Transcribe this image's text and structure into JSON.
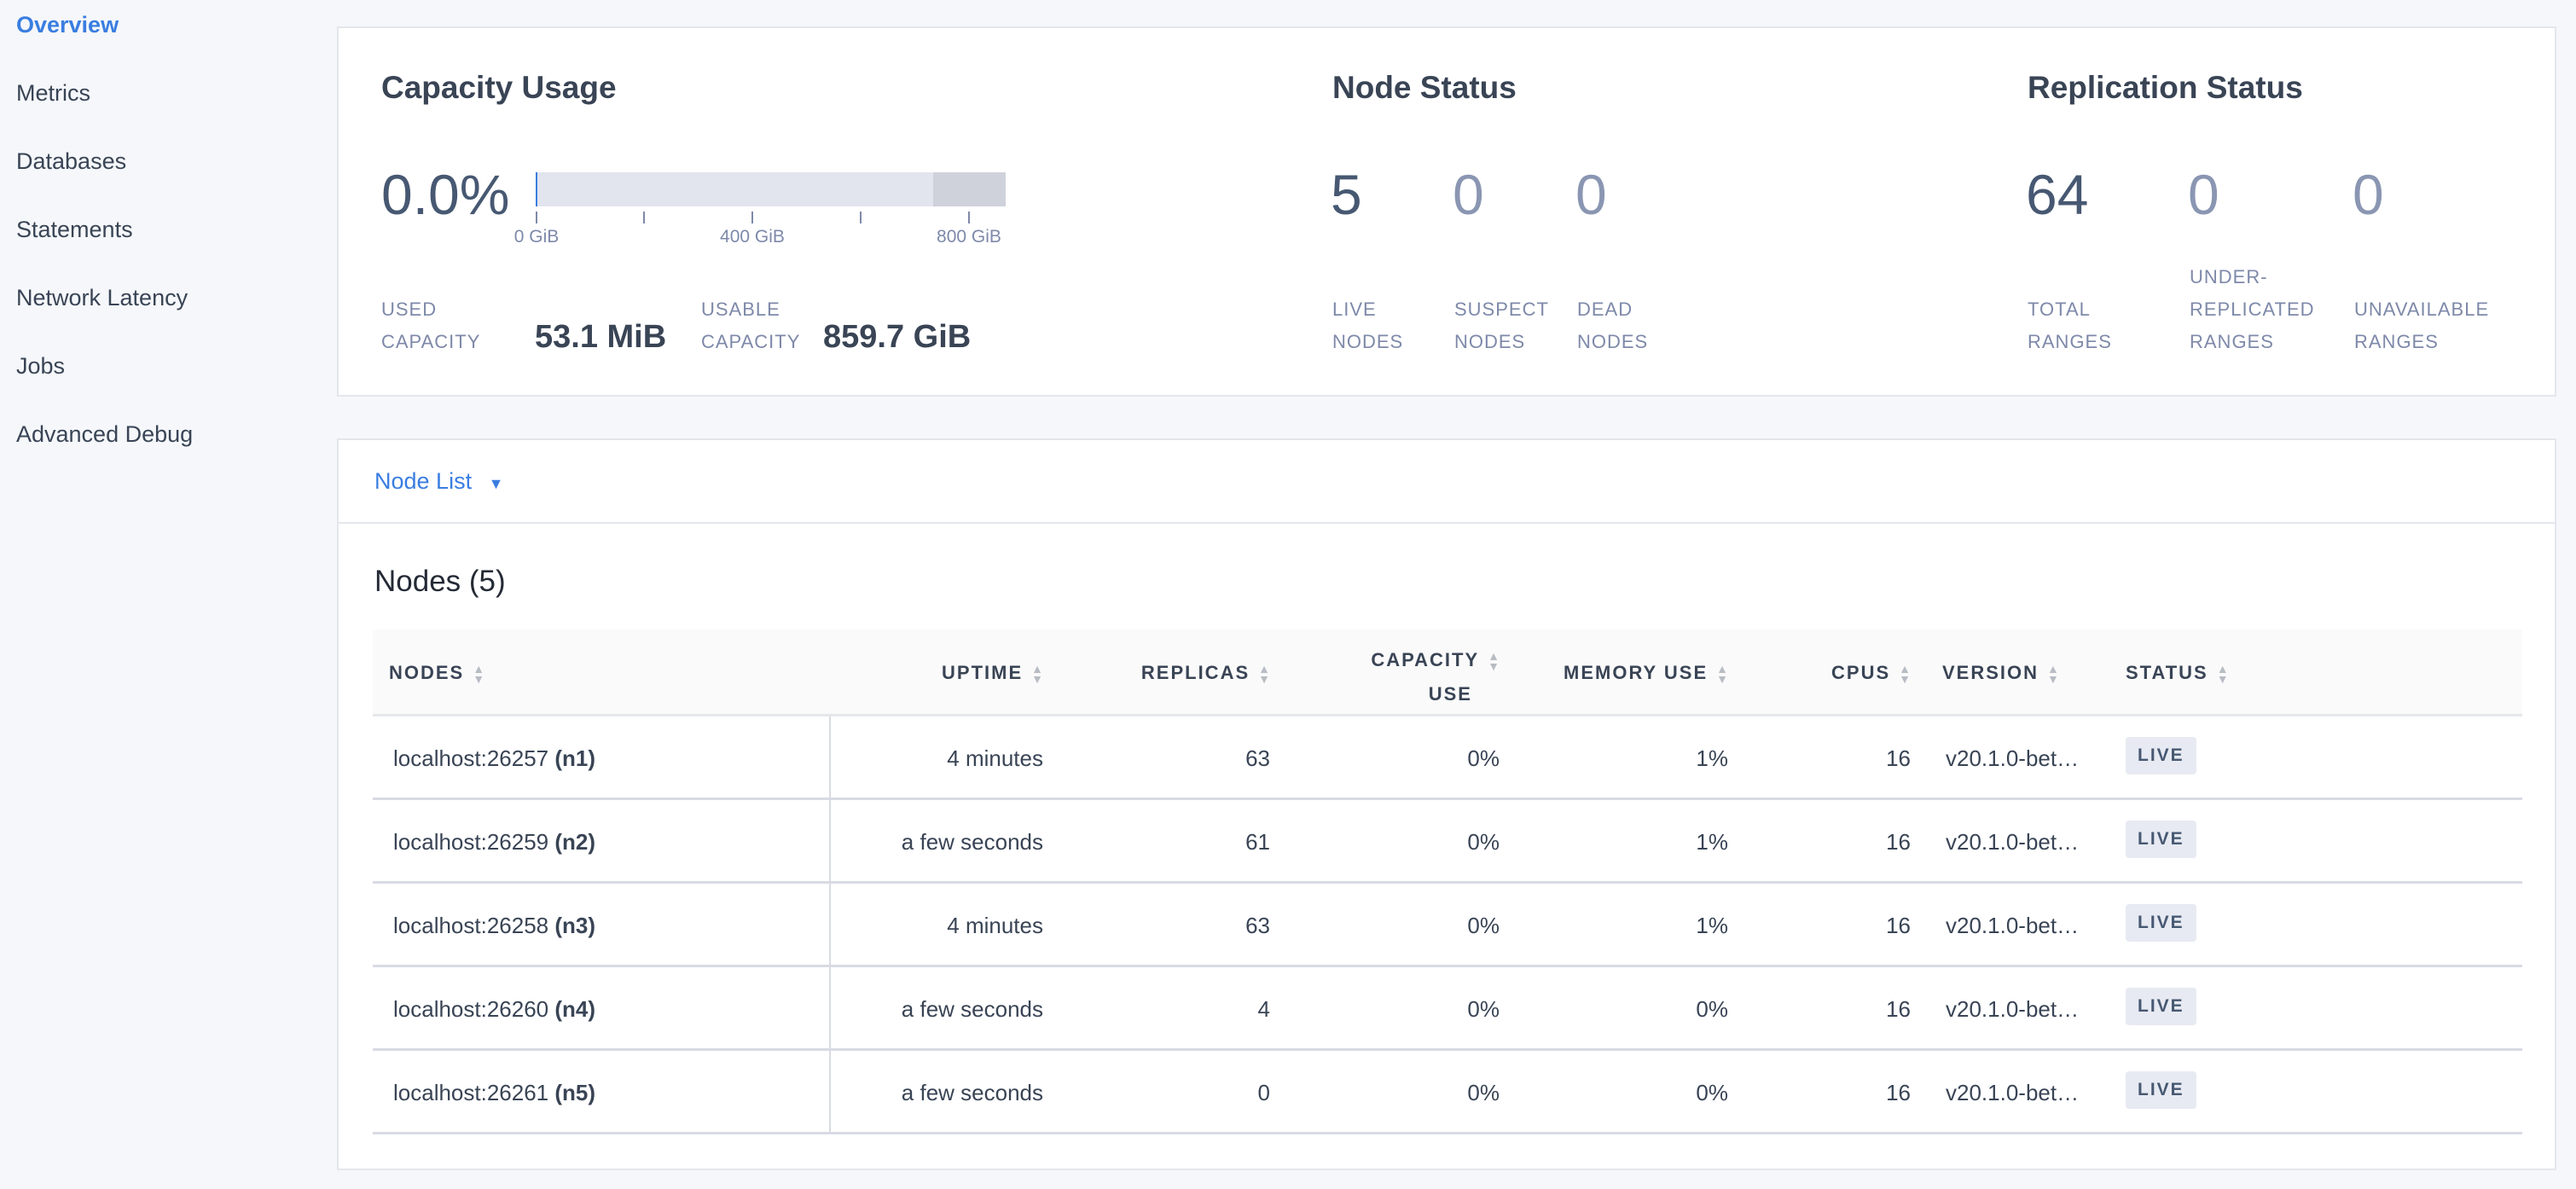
{
  "sidebar": {
    "items": [
      {
        "label": "Overview",
        "active": true
      },
      {
        "label": "Metrics"
      },
      {
        "label": "Databases"
      },
      {
        "label": "Statements"
      },
      {
        "label": "Network Latency"
      },
      {
        "label": "Jobs"
      },
      {
        "label": "Advanced Debug"
      }
    ]
  },
  "capacity": {
    "title": "Capacity Usage",
    "percent": "0.0%",
    "used_fraction": 0.0,
    "axis": [
      "0 GiB",
      "400 GiB",
      "800 GiB"
    ],
    "used_label_1": "USED",
    "used_label_2": "CAPACITY",
    "used_value": "53.1 MiB",
    "usable_label_1": "USABLE",
    "usable_label_2": "CAPACITY",
    "usable_value": "859.7 GiB"
  },
  "node_status": {
    "title": "Node Status",
    "stats": [
      {
        "value": "5",
        "l1": "LIVE",
        "l2": "NODES"
      },
      {
        "value": "0",
        "l1": "SUSPECT",
        "l2": "NODES"
      },
      {
        "value": "0",
        "l1": "DEAD",
        "l2": "NODES"
      }
    ]
  },
  "replication": {
    "title": "Replication Status",
    "stats": [
      {
        "value": "64",
        "l1": "TOTAL",
        "l2": "RANGES"
      },
      {
        "value": "0",
        "l0": "UNDER-",
        "l1": "REPLICATED",
        "l2": "RANGES"
      },
      {
        "value": "0",
        "l1": "UNAVAILABLE",
        "l2": "RANGES"
      }
    ]
  },
  "node_list": {
    "label": "Node List"
  },
  "nodes": {
    "title": "Nodes (5)",
    "headers": [
      "NODES",
      "UPTIME",
      "REPLICAS",
      "CAPACITY",
      "USE",
      "MEMORY USE",
      "CPUS",
      "VERSION",
      "STATUS"
    ],
    "rows": [
      {
        "addr": "localhost:26257",
        "id": "(n1)",
        "uptime": "4 minutes",
        "replicas": "63",
        "cap": "0%",
        "mem": "1%",
        "cpus": "16",
        "version": "v20.1.0-bet…",
        "status": "LIVE"
      },
      {
        "addr": "localhost:26259",
        "id": "(n2)",
        "uptime": "a few seconds",
        "replicas": "61",
        "cap": "0%",
        "mem": "1%",
        "cpus": "16",
        "version": "v20.1.0-bet…",
        "status": "LIVE"
      },
      {
        "addr": "localhost:26258",
        "id": "(n3)",
        "uptime": "4 minutes",
        "replicas": "63",
        "cap": "0%",
        "mem": "1%",
        "cpus": "16",
        "version": "v20.1.0-bet…",
        "status": "LIVE"
      },
      {
        "addr": "localhost:26260",
        "id": "(n4)",
        "uptime": "a few seconds",
        "replicas": "4",
        "cap": "0%",
        "mem": "0%",
        "cpus": "16",
        "version": "v20.1.0-bet…",
        "status": "LIVE"
      },
      {
        "addr": "localhost:26261",
        "id": "(n5)",
        "uptime": "a few seconds",
        "replicas": "0",
        "cap": "0%",
        "mem": "0%",
        "cpus": "16",
        "version": "v20.1.0-bet…",
        "status": "LIVE"
      }
    ]
  },
  "colors": {
    "accent": "#3a7de1",
    "text": "#394455",
    "muted": "#7e89a9"
  }
}
